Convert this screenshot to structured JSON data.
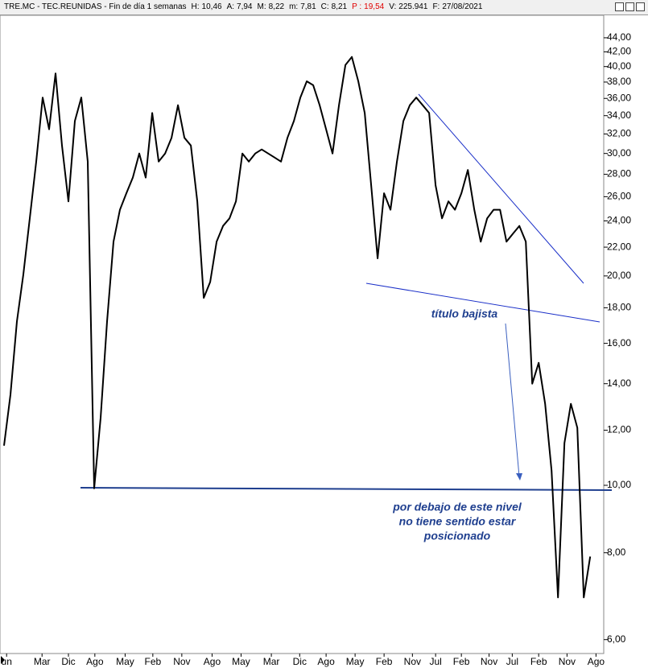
{
  "chart_data": {
    "type": "line",
    "title": "TRE.MC - TEC.REUNIDAS - Fin de día 1 semanas",
    "fields": [
      {
        "label": "H:",
        "value": "10,46"
      },
      {
        "label": "A:",
        "value": "7,94"
      },
      {
        "label": "M:",
        "value": "8,22"
      },
      {
        "label": "m:",
        "value": "7,81"
      },
      {
        "label": "C:",
        "value": "8,21"
      },
      {
        "label": "P :",
        "value": "19,54",
        "color": "#e00000"
      },
      {
        "label": "V:",
        "value": "225.941"
      },
      {
        "label": "F:",
        "value": "27/08/2021"
      }
    ],
    "series": [
      {
        "color": "#000000",
        "values": [
          11.4,
          13.5,
          17.2,
          20.1,
          24.2,
          29.2,
          36.1,
          32.5,
          39.1,
          30.8,
          25.6,
          33.4,
          36.1,
          29.2,
          9.9,
          12.5,
          17.2,
          22.4,
          24.9,
          26.3,
          27.7,
          30.0,
          27.7,
          34.3,
          29.2,
          30.0,
          31.6,
          35.2,
          31.6,
          30.8,
          25.6,
          18.6,
          19.6,
          22.4,
          23.6,
          24.2,
          25.6,
          30.0,
          29.2,
          30.0,
          30.4,
          30.0,
          29.6,
          29.2,
          31.6,
          33.4,
          36.1,
          38.1,
          37.6,
          35.2,
          32.5,
          30.0,
          35.2,
          40.2,
          41.3,
          38.1,
          34.3,
          27.0,
          21.2,
          26.3,
          24.9,
          29.2,
          33.4,
          35.2,
          36.1,
          35.2,
          34.3,
          27.0,
          24.2,
          25.6,
          24.9,
          26.3,
          28.4,
          24.9,
          22.4,
          24.2,
          24.9,
          24.9,
          22.4,
          23.0,
          23.6,
          22.4,
          14.0,
          15.0,
          13.1,
          10.5,
          6.9,
          11.5,
          13.1,
          12.1,
          6.9,
          7.9
        ]
      }
    ],
    "xlim": [
      -0.625,
      93.1
    ],
    "xticks": [
      {
        "value": 0.4,
        "label": "un"
      },
      {
        "value": 5.9,
        "label": "Mar"
      },
      {
        "value": 10,
        "label": "Dic"
      },
      {
        "value": 14.1,
        "label": "Ago"
      },
      {
        "value": 18.8,
        "label": "May"
      },
      {
        "value": 23.1,
        "label": "Feb"
      },
      {
        "value": 27.6,
        "label": "Nov"
      },
      {
        "value": 32.3,
        "label": "Ago"
      },
      {
        "value": 36.8,
        "label": "May"
      },
      {
        "value": 41.5,
        "label": "Mar"
      },
      {
        "value": 45.9,
        "label": "Dic"
      },
      {
        "value": 50,
        "label": "Ago"
      },
      {
        "value": 54.5,
        "label": "May"
      },
      {
        "value": 59,
        "label": "Feb"
      },
      {
        "value": 63.4,
        "label": "Nov"
      },
      {
        "value": 67,
        "label": "Jul"
      },
      {
        "value": 71,
        "label": "Feb"
      },
      {
        "value": 75.3,
        "label": "Nov"
      },
      {
        "value": 78.9,
        "label": "Jul"
      },
      {
        "value": 83,
        "label": "Feb"
      },
      {
        "value": 87.4,
        "label": "Nov"
      },
      {
        "value": 91.9,
        "label": "Ago"
      }
    ],
    "ylim": [
      5.73,
      47.4
    ],
    "log_y": true,
    "yticks": [
      {
        "value": 6,
        "label": "6,00"
      },
      {
        "value": 8,
        "label": "8,00"
      },
      {
        "value": 10,
        "label": "10,00"
      },
      {
        "value": 12,
        "label": "12,00"
      },
      {
        "value": 14,
        "label": "14,00"
      },
      {
        "value": 16,
        "label": "16,00"
      },
      {
        "value": 18,
        "label": "18,00"
      },
      {
        "value": 20,
        "label": "20,00"
      },
      {
        "value": 22,
        "label": "22,00"
      },
      {
        "value": 24,
        "label": "24,00"
      },
      {
        "value": 26,
        "label": "26,00"
      },
      {
        "value": 28,
        "label": "28,00"
      },
      {
        "value": 30,
        "label": "30,00"
      },
      {
        "value": 32,
        "label": "32,00"
      },
      {
        "value": 34,
        "label": "34,00"
      },
      {
        "value": 36,
        "label": "36,00"
      },
      {
        "value": 38,
        "label": "38,00"
      },
      {
        "value": 40,
        "label": "40,00"
      },
      {
        "value": 42,
        "label": "42,00"
      },
      {
        "value": 44,
        "label": "44,00"
      }
    ],
    "annotations": [
      "título bajista",
      "por debajo de este nivel",
      "no tiene sentido estar",
      "posicionado"
    ]
  }
}
